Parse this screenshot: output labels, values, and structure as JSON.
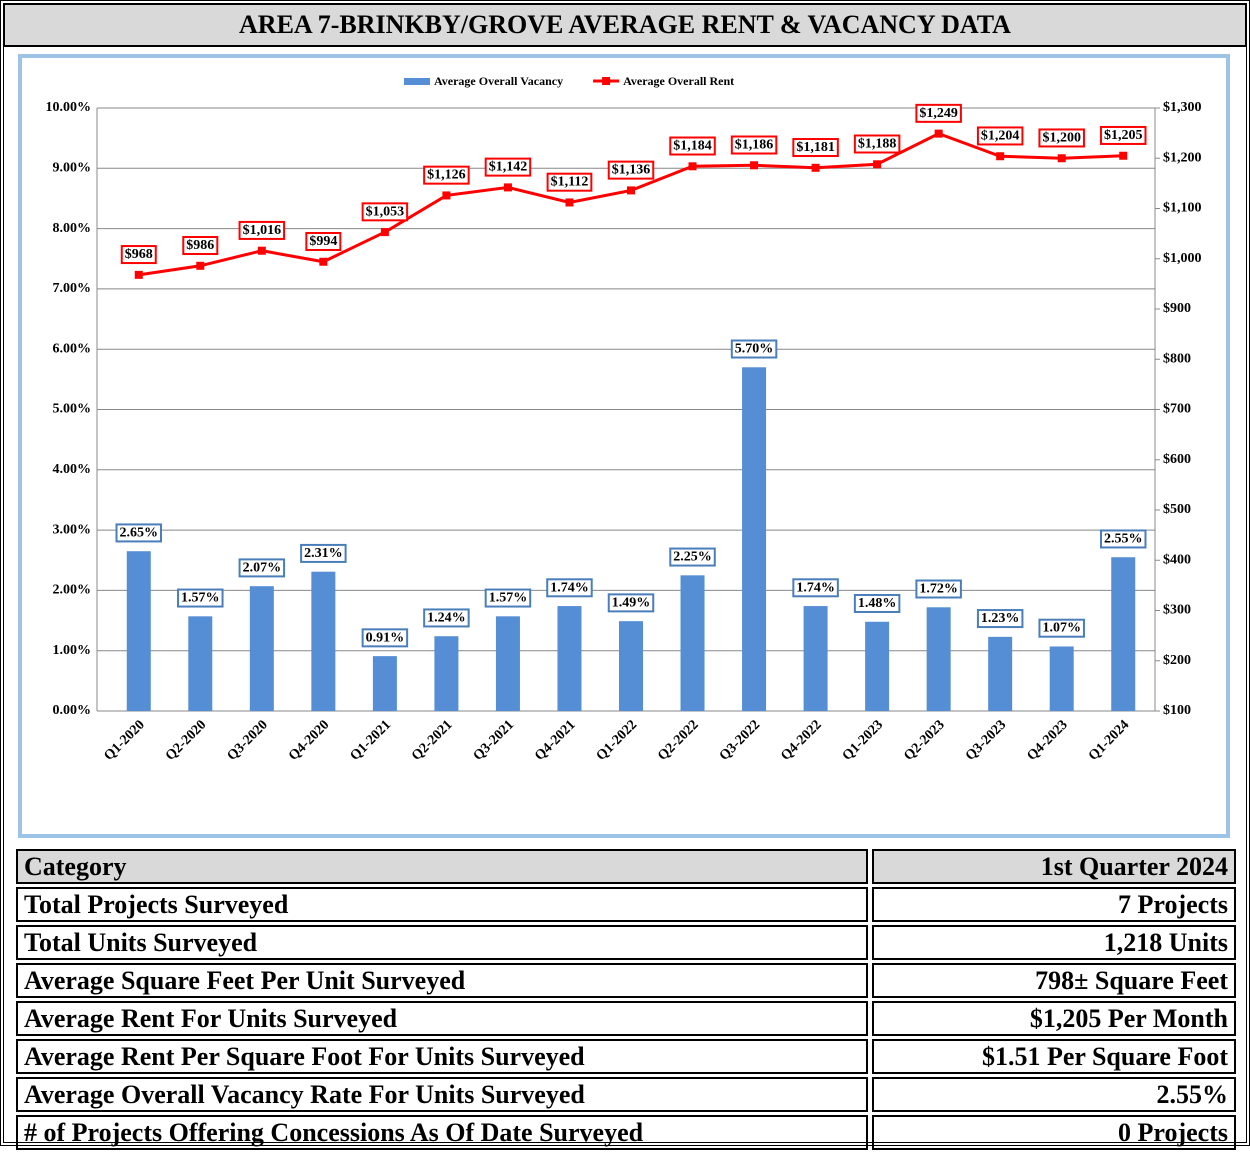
{
  "chart_data": {
    "type": "bar",
    "title": "AREA 7-BRINKBY/GROVE AVERAGE RENT & VACANCY DATA",
    "categories": [
      "Q1-2020",
      "Q2-2020",
      "Q3-2020",
      "Q4-2020",
      "Q1-2021",
      "Q2-2021",
      "Q3-2021",
      "Q4-2021",
      "Q1-2022",
      "Q2-2022",
      "Q3-2022",
      "Q4-2022",
      "Q1-2023",
      "Q2-2023",
      "Q3-2023",
      "Q4-2023",
      "Q1-2024"
    ],
    "series": [
      {
        "name": "Average Overall Vacancy",
        "type": "bar",
        "color": "#558ed5",
        "values": [
          2.65,
          1.57,
          2.07,
          2.31,
          0.91,
          1.24,
          1.57,
          1.74,
          1.49,
          2.25,
          5.7,
          1.74,
          1.48,
          1.72,
          1.23,
          1.07,
          2.55
        ],
        "value_labels": [
          "2.65%",
          "1.57%",
          "2.07%",
          "2.31%",
          "0.91%",
          "1.24%",
          "1.57%",
          "1.74%",
          "1.49%",
          "2.25%",
          "5.70%",
          "1.74%",
          "1.48%",
          "1.72%",
          "1.23%",
          "1.07%",
          "2.55%"
        ]
      },
      {
        "name": "Average Overall Rent",
        "type": "line",
        "color": "#ff0000",
        "axis": "y2",
        "values": [
          968,
          986,
          1016,
          994,
          1053,
          1126,
          1142,
          1112,
          1136,
          1184,
          1186,
          1181,
          1188,
          1249,
          1204,
          1200,
          1205
        ],
        "value_labels": [
          "$968",
          "$986",
          "$1,016",
          "$994",
          "$1,053",
          "$1,126",
          "$1,142",
          "$1,112",
          "$1,136",
          "$1,184",
          "$1,186",
          "$1,181",
          "$1,188",
          "$1,249",
          "$1,204",
          "$1,200",
          "$1,205"
        ]
      }
    ],
    "ylim": [
      0,
      10
    ],
    "yticks": [
      {
        "value": 0,
        "label": "0.00%"
      },
      {
        "value": 1,
        "label": "1.00%"
      },
      {
        "value": 2,
        "label": "2.00%"
      },
      {
        "value": 3,
        "label": "3.00%"
      },
      {
        "value": 4,
        "label": "4.00%"
      },
      {
        "value": 5,
        "label": "5.00%"
      },
      {
        "value": 6,
        "label": "6.00%"
      },
      {
        "value": 7,
        "label": "7.00%"
      },
      {
        "value": 8,
        "label": "8.00%"
      },
      {
        "value": 9,
        "label": "9.00%"
      },
      {
        "value": 10,
        "label": "10.00%"
      }
    ],
    "y2lim": [
      100,
      1300
    ],
    "y2ticks": [
      {
        "value": 100,
        "label": "$100"
      },
      {
        "value": 200,
        "label": "$200"
      },
      {
        "value": 300,
        "label": "$300"
      },
      {
        "value": 400,
        "label": "$400"
      },
      {
        "value": 500,
        "label": "$500"
      },
      {
        "value": 600,
        "label": "$600"
      },
      {
        "value": 700,
        "label": "$700"
      },
      {
        "value": 800,
        "label": "$800"
      },
      {
        "value": 900,
        "label": "$900"
      },
      {
        "value": 1000,
        "label": "$1,000"
      },
      {
        "value": 1100,
        "label": "$1,100"
      },
      {
        "value": 1200,
        "label": "$1,200"
      },
      {
        "value": 1300,
        "label": "$1,300"
      }
    ],
    "grid": true,
    "legend": "top"
  },
  "table": {
    "header": [
      "Category",
      "1st Quarter 2024"
    ],
    "rows": [
      [
        "Total Projects Surveyed",
        "7 Projects"
      ],
      [
        "Total Units Surveyed",
        "1,218 Units"
      ],
      [
        "Average Square Feet Per Unit Surveyed",
        "798± Square Feet"
      ],
      [
        "Average Rent For Units Surveyed",
        "$1,205 Per Month"
      ],
      [
        "Average Rent Per Square Foot For Units Surveyed",
        "$1.51 Per Square Foot"
      ],
      [
        "Average Overall Vacancy Rate For Units Surveyed",
        "2.55%"
      ],
      [
        "# of Projects Offering Concessions As Of Date Surveyed",
        "0 Projects"
      ]
    ]
  }
}
